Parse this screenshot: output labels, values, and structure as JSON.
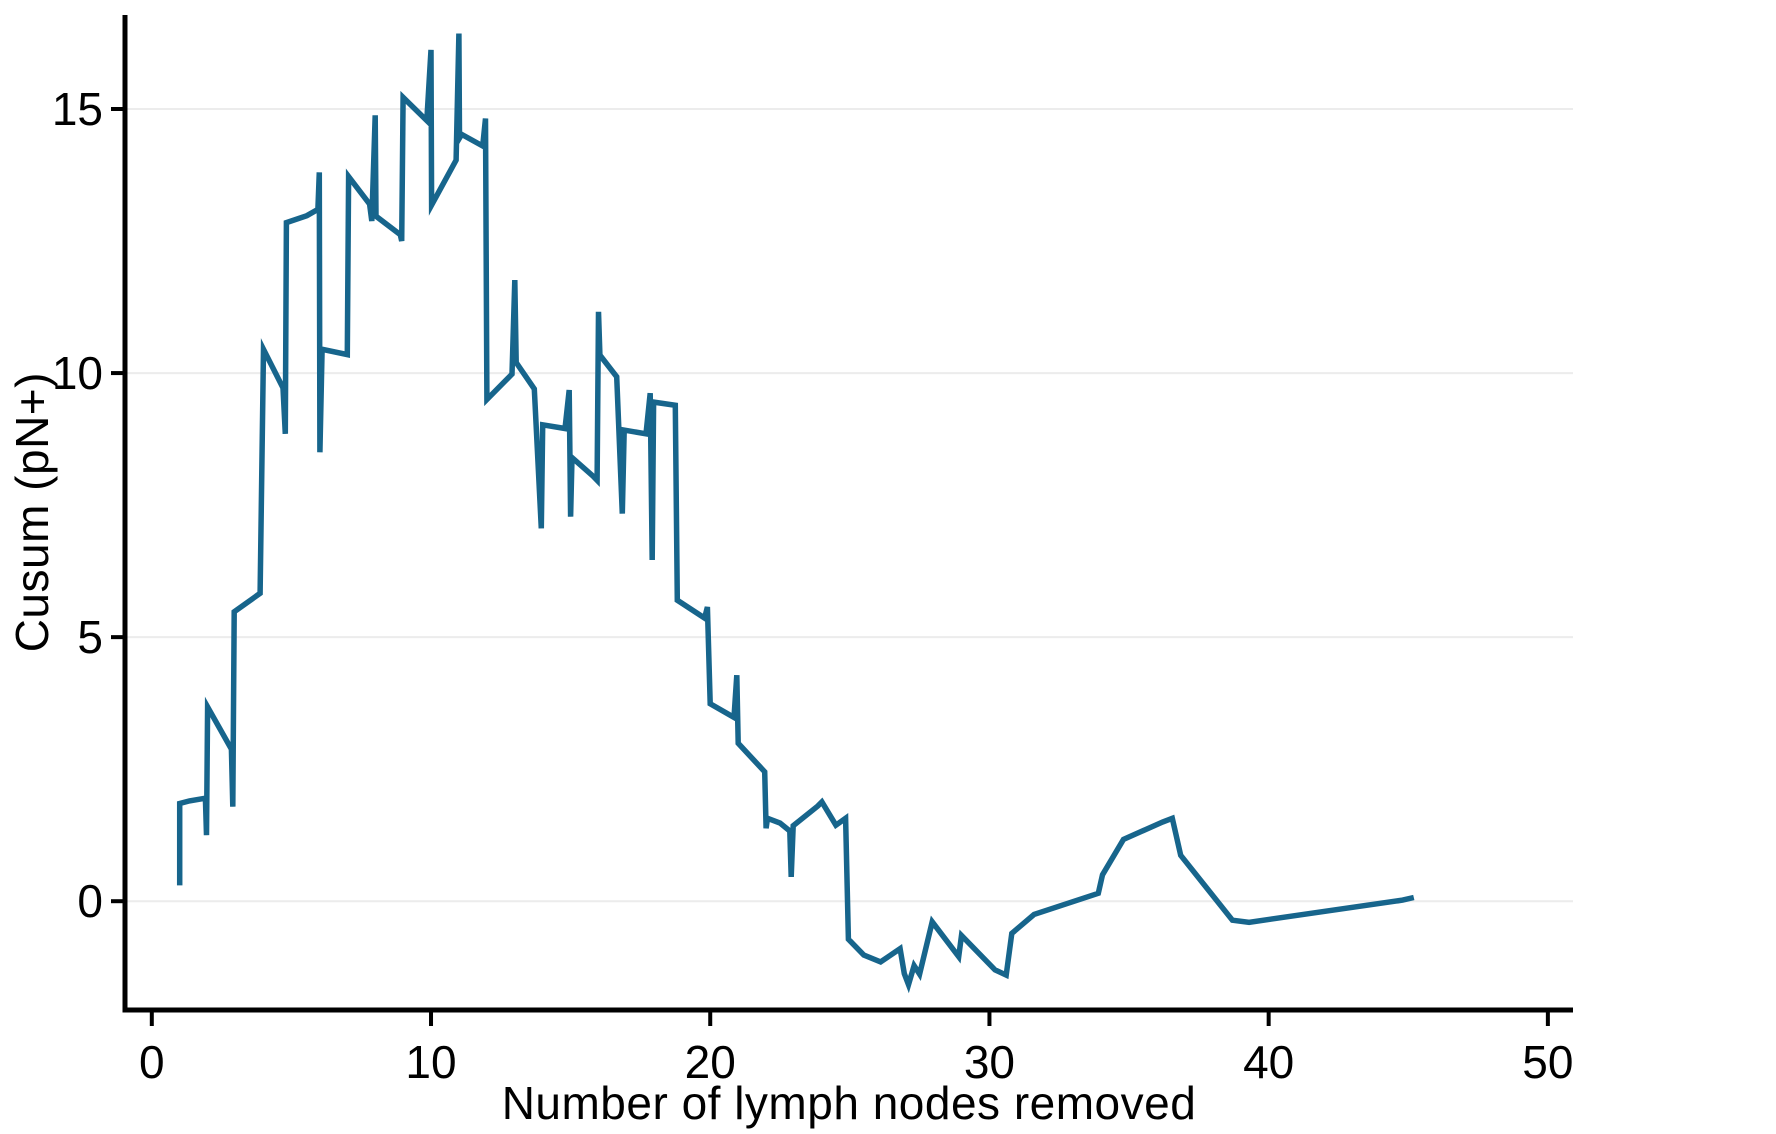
{
  "figure": {
    "x_axis_title": "Number of lymph nodes removed",
    "y_axis_title": "Cusum (pN+)"
  },
  "chart_data": {
    "type": "line",
    "title": "",
    "xlabel": "Number of lymph nodes removed",
    "ylabel": "Cusum (pN+)",
    "x_ticks": [
      0,
      10,
      20,
      30,
      40,
      50
    ],
    "y_ticks": [
      0,
      5,
      10,
      15
    ],
    "xlim": [
      -0.96,
      50.9
    ],
    "ylim": [
      -2.06,
      16.78
    ],
    "grid": "horizontal-at-y-ticks",
    "legend_position": "none",
    "colors": {
      "line": "#17658c",
      "axis": "#000000",
      "grid": "#ececec",
      "tick_label": "#000000"
    },
    "series": [
      {
        "name": "Cusum (pN+)",
        "points": [
          [
            1.0,
            0.3
          ],
          [
            1.0,
            1.85
          ],
          [
            1.35,
            1.9
          ],
          [
            1.92,
            1.95
          ],
          [
            1.96,
            1.25
          ],
          [
            2.0,
            3.68
          ],
          [
            2.85,
            2.88
          ],
          [
            2.9,
            1.79
          ],
          [
            2.95,
            5.48
          ],
          [
            3.88,
            5.83
          ],
          [
            4.0,
            10.45
          ],
          [
            4.7,
            9.72
          ],
          [
            4.78,
            8.85
          ],
          [
            4.82,
            12.85
          ],
          [
            5.55,
            12.98
          ],
          [
            5.95,
            13.1
          ],
          [
            6.0,
            13.8
          ],
          [
            6.02,
            8.5
          ],
          [
            6.1,
            10.45
          ],
          [
            7.0,
            10.35
          ],
          [
            7.05,
            13.72
          ],
          [
            7.8,
            13.2
          ],
          [
            7.88,
            12.88
          ],
          [
            8.0,
            14.88
          ],
          [
            8.03,
            12.97
          ],
          [
            8.9,
            12.62
          ],
          [
            8.95,
            12.5
          ],
          [
            9.0,
            15.22
          ],
          [
            9.85,
            14.78
          ],
          [
            10.0,
            16.12
          ],
          [
            10.02,
            13.18
          ],
          [
            10.9,
            14.03
          ],
          [
            11.0,
            16.43
          ],
          [
            11.02,
            14.45
          ],
          [
            11.1,
            14.52
          ],
          [
            11.85,
            14.3
          ],
          [
            11.95,
            14.82
          ],
          [
            12.0,
            9.5
          ],
          [
            12.9,
            9.98
          ],
          [
            13.0,
            11.76
          ],
          [
            13.05,
            10.2
          ],
          [
            13.7,
            9.7
          ],
          [
            13.95,
            7.06
          ],
          [
            14.0,
            9.02
          ],
          [
            14.8,
            8.95
          ],
          [
            14.95,
            9.68
          ],
          [
            15.0,
            7.28
          ],
          [
            15.05,
            8.4
          ],
          [
            15.8,
            8.05
          ],
          [
            15.95,
            7.97
          ],
          [
            16.0,
            11.16
          ],
          [
            16.05,
            10.34
          ],
          [
            16.65,
            9.93
          ],
          [
            16.85,
            7.34
          ],
          [
            16.92,
            8.92
          ],
          [
            17.7,
            8.85
          ],
          [
            17.85,
            9.62
          ],
          [
            17.92,
            6.46
          ],
          [
            17.97,
            9.45
          ],
          [
            18.75,
            9.39
          ],
          [
            18.82,
            5.7
          ],
          [
            19.8,
            5.36
          ],
          [
            19.9,
            5.57
          ],
          [
            20.0,
            3.74
          ],
          [
            20.85,
            3.48
          ],
          [
            20.95,
            4.28
          ],
          [
            21.0,
            2.99
          ],
          [
            21.95,
            2.45
          ],
          [
            22.0,
            1.38
          ],
          [
            22.05,
            1.57
          ],
          [
            22.5,
            1.48
          ],
          [
            22.85,
            1.33
          ],
          [
            22.9,
            0.46
          ],
          [
            22.97,
            1.43
          ],
          [
            23.85,
            1.8
          ],
          [
            24.0,
            1.88
          ],
          [
            24.5,
            1.44
          ],
          [
            24.85,
            1.57
          ],
          [
            24.95,
            -0.72
          ],
          [
            25.5,
            -1.02
          ],
          [
            26.1,
            -1.15
          ],
          [
            26.8,
            -0.9
          ],
          [
            26.95,
            -1.37
          ],
          [
            27.1,
            -1.58
          ],
          [
            27.3,
            -1.22
          ],
          [
            27.5,
            -1.38
          ],
          [
            27.95,
            -0.39
          ],
          [
            28.9,
            -1.05
          ],
          [
            29.0,
            -0.65
          ],
          [
            30.2,
            -1.3
          ],
          [
            30.6,
            -1.4
          ],
          [
            30.8,
            -0.61
          ],
          [
            31.6,
            -0.25
          ],
          [
            33.9,
            0.15
          ],
          [
            34.05,
            0.5
          ],
          [
            34.8,
            1.17
          ],
          [
            36.2,
            1.5
          ],
          [
            36.55,
            1.57
          ],
          [
            36.85,
            0.87
          ],
          [
            38.7,
            -0.36
          ],
          [
            39.3,
            -0.4
          ],
          [
            44.8,
            0.02
          ],
          [
            45.2,
            0.07
          ]
        ]
      }
    ]
  }
}
